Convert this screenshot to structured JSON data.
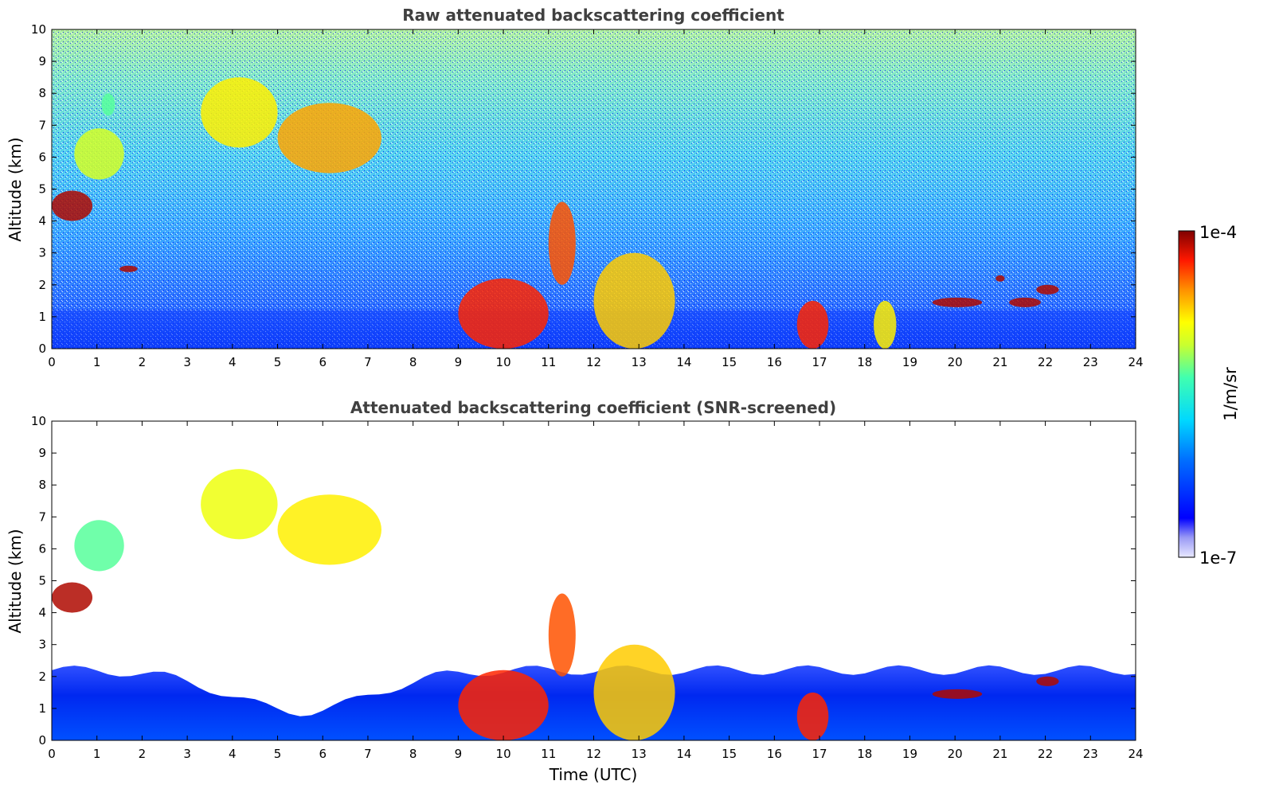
{
  "charts": [
    {
      "type": "heatmap",
      "title": "Raw attenuated backscattering coefficient",
      "xlabel": "",
      "ylabel": "Altitude (km)",
      "xlim": [
        0,
        24
      ],
      "ylim": [
        0,
        10
      ],
      "xticks": [
        "0",
        "1",
        "2",
        "3",
        "4",
        "5",
        "6",
        "7",
        "8",
        "9",
        "10",
        "11",
        "12",
        "13",
        "14",
        "15",
        "16",
        "17",
        "18",
        "19",
        "20",
        "21",
        "22",
        "23",
        "24"
      ],
      "yticks": [
        "0",
        "1",
        "2",
        "3",
        "4",
        "5",
        "6",
        "7",
        "8",
        "9",
        "10"
      ]
    },
    {
      "type": "heatmap",
      "title": "Attenuated backscattering coefficient (SNR-screened)",
      "xlabel": "Time (UTC)",
      "ylabel": "Altitude (km)",
      "xlim": [
        0,
        24
      ],
      "ylim": [
        0,
        10
      ],
      "xticks": [
        "0",
        "1",
        "2",
        "3",
        "4",
        "5",
        "6",
        "7",
        "8",
        "9",
        "10",
        "11",
        "12",
        "13",
        "14",
        "15",
        "16",
        "17",
        "18",
        "19",
        "20",
        "21",
        "22",
        "23",
        "24"
      ],
      "yticks": [
        "0",
        "1",
        "2",
        "3",
        "4",
        "5",
        "6",
        "7",
        "8",
        "9",
        "10"
      ]
    }
  ],
  "colorbar": {
    "label": "1/m/sr",
    "max_label": "1e-4",
    "min_label": "1e-7",
    "scale": "log",
    "range": [
      1e-07,
      0.0001
    ],
    "colormap": "jet"
  },
  "chart_data": [
    {
      "type": "heatmap",
      "title": "Raw attenuated backscattering coefficient",
      "x_unit": "hour UTC",
      "y_unit": "km",
      "xlim": [
        0,
        24
      ],
      "ylim": [
        0,
        10
      ],
      "features": [
        {
          "kind": "boundary_layer",
          "x": [
            0,
            24
          ],
          "y": [
            0,
            1.2
          ],
          "value_exponent": -6.2
        },
        {
          "kind": "cloud",
          "x": [
            0.0,
            0.9
          ],
          "y": [
            4.0,
            4.95
          ],
          "value_exponent": -4.1
        },
        {
          "kind": "cloud",
          "x": [
            0.5,
            1.6
          ],
          "y": [
            5.3,
            6.9
          ],
          "value_exponent": -5.0
        },
        {
          "kind": "cloud",
          "x": [
            1.1,
            1.4
          ],
          "y": [
            7.3,
            8.0
          ],
          "value_exponent": -5.3
        },
        {
          "kind": "cloud",
          "x": [
            1.5,
            1.9
          ],
          "y": [
            2.4,
            2.6
          ],
          "value_exponent": -4.1
        },
        {
          "kind": "cloud",
          "x": [
            3.3,
            5.0
          ],
          "y": [
            6.3,
            8.5
          ],
          "value_exponent": -4.8
        },
        {
          "kind": "cloud",
          "x": [
            5.0,
            7.3
          ],
          "y": [
            5.5,
            7.7
          ],
          "value_exponent": -4.6
        },
        {
          "kind": "cloud",
          "x": [
            9.0,
            11.0
          ],
          "y": [
            0.0,
            2.2
          ],
          "value_exponent": -4.3
        },
        {
          "kind": "cloud",
          "x": [
            11.0,
            11.6
          ],
          "y": [
            2.0,
            4.6
          ],
          "value_exponent": -4.4
        },
        {
          "kind": "cloud",
          "x": [
            12.0,
            13.8
          ],
          "y": [
            0.0,
            3.0
          ],
          "value_exponent": -4.7
        },
        {
          "kind": "cloud",
          "x": [
            16.5,
            17.2
          ],
          "y": [
            0.0,
            1.5
          ],
          "value_exponent": -4.3
        },
        {
          "kind": "cloud",
          "x": [
            18.2,
            18.7
          ],
          "y": [
            0.0,
            1.5
          ],
          "value_exponent": -4.8
        },
        {
          "kind": "cloud",
          "x": [
            19.5,
            20.6
          ],
          "y": [
            1.3,
            1.6
          ],
          "value_exponent": -4.1
        },
        {
          "kind": "cloud",
          "x": [
            20.9,
            21.1
          ],
          "y": [
            2.1,
            2.3
          ],
          "value_exponent": -4.1
        },
        {
          "kind": "cloud",
          "x": [
            21.2,
            21.9
          ],
          "y": [
            1.3,
            1.6
          ],
          "value_exponent": -4.1
        },
        {
          "kind": "cloud",
          "x": [
            21.8,
            22.3
          ],
          "y": [
            1.7,
            2.0
          ],
          "value_exponent": -4.1
        }
      ]
    },
    {
      "type": "heatmap",
      "title": "Attenuated backscattering coefficient (SNR-screened)",
      "x_unit": "hour UTC",
      "y_unit": "km",
      "xlim": [
        0,
        24
      ],
      "ylim": [
        0,
        10
      ],
      "features": [
        {
          "kind": "boundary_layer",
          "x": [
            0,
            24
          ],
          "y": [
            0,
            2.6
          ],
          "value_exponent": -6.2
        },
        {
          "kind": "cloud",
          "x": [
            0.0,
            0.9
          ],
          "y": [
            4.0,
            4.95
          ],
          "value_exponent": -4.1
        },
        {
          "kind": "cloud",
          "x": [
            0.5,
            1.6
          ],
          "y": [
            5.3,
            6.9
          ],
          "value_exponent": -5.3
        },
        {
          "kind": "cloud",
          "x": [
            3.3,
            5.0
          ],
          "y": [
            6.3,
            8.5
          ],
          "value_exponent": -4.9
        },
        {
          "kind": "cloud",
          "x": [
            5.0,
            7.3
          ],
          "y": [
            5.5,
            7.7
          ],
          "value_exponent": -4.8
        },
        {
          "kind": "cloud",
          "x": [
            9.0,
            11.0
          ],
          "y": [
            0.0,
            2.2
          ],
          "value_exponent": -4.3
        },
        {
          "kind": "cloud",
          "x": [
            11.0,
            11.6
          ],
          "y": [
            2.0,
            4.6
          ],
          "value_exponent": -4.4
        },
        {
          "kind": "cloud",
          "x": [
            12.0,
            13.8
          ],
          "y": [
            0.0,
            3.0
          ],
          "value_exponent": -4.7
        },
        {
          "kind": "cloud",
          "x": [
            16.5,
            17.2
          ],
          "y": [
            0.0,
            1.5
          ],
          "value_exponent": -4.3
        },
        {
          "kind": "cloud",
          "x": [
            19.5,
            20.6
          ],
          "y": [
            1.3,
            1.6
          ],
          "value_exponent": -4.1
        },
        {
          "kind": "cloud",
          "x": [
            21.8,
            22.3
          ],
          "y": [
            1.7,
            2.0
          ],
          "value_exponent": -4.1
        }
      ]
    }
  ]
}
